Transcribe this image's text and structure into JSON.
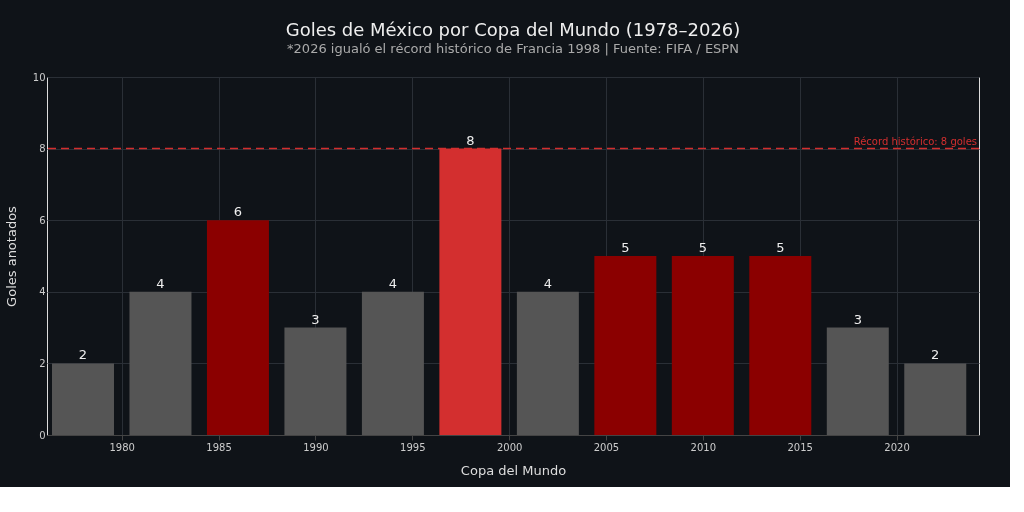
{
  "chart_data": {
    "type": "bar",
    "title": "Goles de México por Copa del Mundo (1978–2026)",
    "subtitle": "*2026 igualó el récord histórico de Francia 1998 | Fuente: FIFA / ESPN",
    "xlabel": "Copa del Mundo",
    "ylabel": "Goles anotados",
    "x": [
      1978,
      1982,
      1986,
      1990,
      1994,
      1998,
      2002,
      2006,
      2010,
      2014,
      2018,
      2022
    ],
    "values": [
      2,
      4,
      6,
      3,
      4,
      8,
      4,
      5,
      5,
      5,
      3,
      2
    ],
    "colors": [
      "#555555",
      "#555555",
      "#8b0000",
      "#555555",
      "#555555",
      "#d32f2f",
      "#555555",
      "#8b0000",
      "#8b0000",
      "#8b0000",
      "#555555",
      "#555555"
    ],
    "xlim": [
      1976.4,
      2024
    ],
    "xticks": [
      1980,
      1985,
      1990,
      1995,
      2000,
      2005,
      2010,
      2015,
      2020
    ],
    "ylim": [
      0,
      10
    ],
    "yticks": [
      0,
      2,
      4,
      6,
      8,
      10
    ],
    "ref_lines": [
      {
        "axis": "y",
        "value": 8,
        "label": "Récord histórico: 8 goles",
        "color": "#d32f2f",
        "line_style": "dashed"
      }
    ],
    "data_labels": true,
    "grid": true
  }
}
